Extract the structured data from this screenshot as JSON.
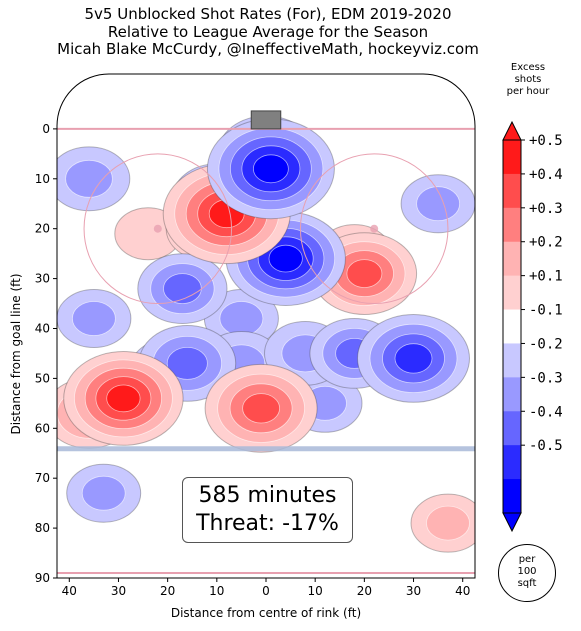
{
  "title_lines": [
    "5v5 Unblocked Shot Rates (For), EDM 2019-2020",
    "Relative to League Average for the Season",
    "Micah Blake McCurdy, @IneffectiveMath, hockeyviz.com"
  ],
  "colorbar": {
    "title_lines": [
      "Excess",
      "shots",
      "per hour"
    ],
    "labels": [
      "+0.5",
      "+0.4",
      "+0.3",
      "+0.2",
      "+0.1",
      "-0.1",
      "-0.2",
      "-0.3",
      "-0.4",
      "-0.5"
    ],
    "colors": [
      "#ff1a1a",
      "#ff4d4d",
      "#ff7f7f",
      "#ffb3b3",
      "#ffd0d0",
      "#ffffff",
      "#c8c8ff",
      "#9999ff",
      "#6666ff",
      "#2b2bff",
      "#0000ff"
    ]
  },
  "per100_lines": [
    "per",
    "100",
    "sqft"
  ],
  "stats": {
    "minutes": "585 minutes",
    "threat": "Threat: -17%"
  },
  "chart_data": {
    "type": "heatmap",
    "xlabel": "Distance from centre of rink (ft)",
    "ylabel": "Distance from goal line (ft)",
    "xlim": [
      42.5,
      -42.5
    ],
    "ylim": [
      90,
      -11
    ],
    "x_ticks": [
      40,
      30,
      20,
      10,
      0,
      10,
      20,
      30,
      40
    ],
    "x_tick_values": [
      40,
      30,
      20,
      10,
      0,
      -10,
      -20,
      -30,
      -40
    ],
    "y_ticks": [
      0,
      10,
      20,
      30,
      40,
      50,
      60,
      70,
      80,
      90
    ],
    "unit": "Excess shots per hour",
    "colors": {
      "high": "#ff0000",
      "low": "#0000ff",
      "neutral": "#ffffff",
      "rink_lines": "#e8a0b0",
      "blue_line": "#a8b8d8",
      "net": "#808080"
    },
    "regions": [
      {
        "x": 8,
        "y": 17,
        "value": 0.5
      },
      {
        "x": 12,
        "y": 20,
        "value": 0.2
      },
      {
        "x": 29,
        "y": 54,
        "value": 0.45
      },
      {
        "x": 36,
        "y": 57,
        "value": 0.25
      },
      {
        "x": 1,
        "y": 56,
        "value": 0.4
      },
      {
        "x": -20,
        "y": 29,
        "value": 0.35
      },
      {
        "x": -18,
        "y": 25,
        "value": 0.15
      },
      {
        "x": -37,
        "y": 79,
        "value": 0.15
      },
      {
        "x": 24,
        "y": 21,
        "value": 0.1
      },
      {
        "x": -1,
        "y": 8,
        "value": -0.5
      },
      {
        "x": -4,
        "y": 26,
        "value": -0.45
      },
      {
        "x": 0,
        "y": 5,
        "value": -0.3
      },
      {
        "x": 10,
        "y": 14,
        "value": -0.25
      },
      {
        "x": -30,
        "y": 46,
        "value": -0.4
      },
      {
        "x": -18,
        "y": 45,
        "value": -0.25
      },
      {
        "x": 17,
        "y": 32,
        "value": -0.25
      },
      {
        "x": 16,
        "y": 47,
        "value": -0.3
      },
      {
        "x": 5,
        "y": 47,
        "value": -0.2
      },
      {
        "x": -8,
        "y": 45,
        "value": -0.2
      },
      {
        "x": 36,
        "y": 10,
        "value": -0.2
      },
      {
        "x": 35,
        "y": 38,
        "value": -0.15
      },
      {
        "x": 33,
        "y": 73,
        "value": -0.15
      },
      {
        "x": -35,
        "y": 15,
        "value": -0.15
      },
      {
        "x": 5,
        "y": 38,
        "value": -0.15
      },
      {
        "x": 20,
        "y": 48,
        "value": -0.15
      },
      {
        "x": -12,
        "y": 55,
        "value": -0.15
      }
    ]
  }
}
